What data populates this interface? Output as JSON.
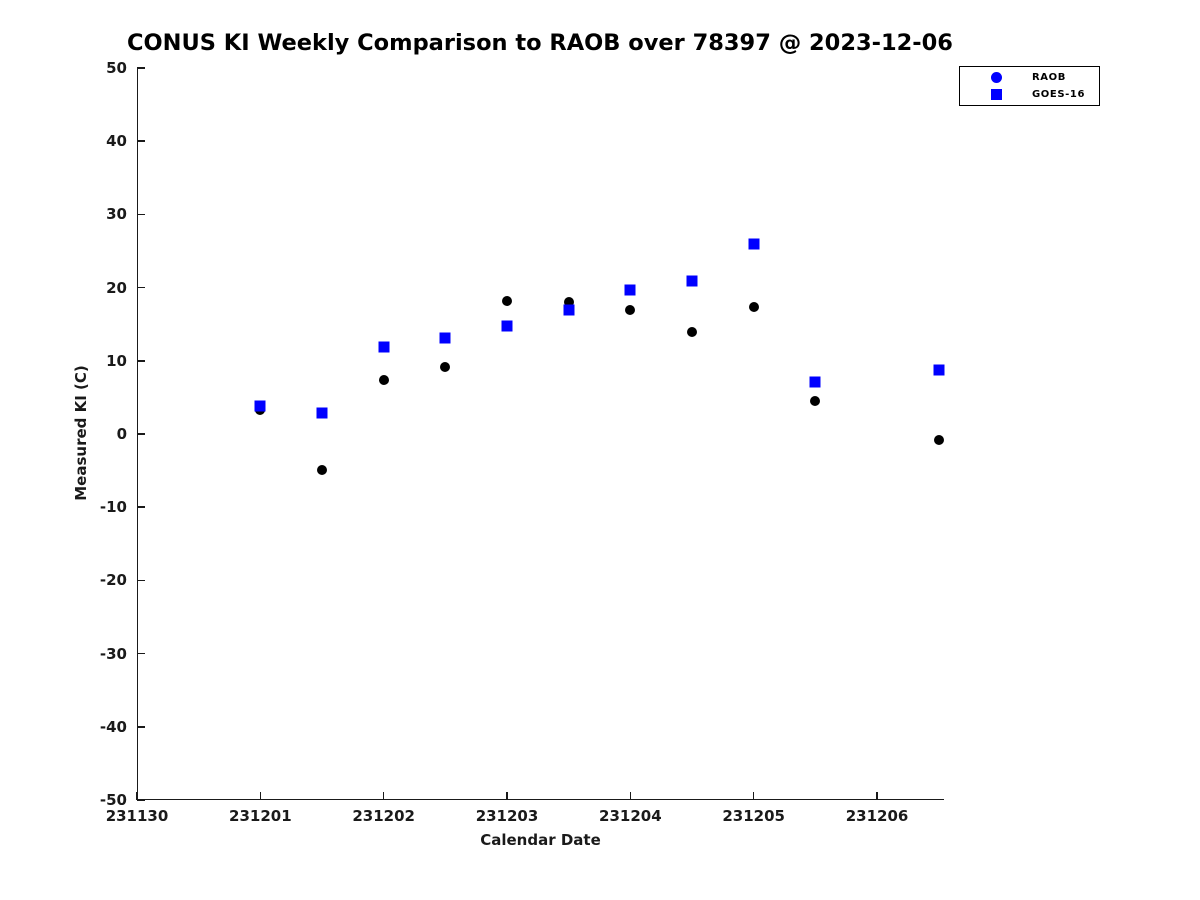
{
  "figure": {
    "title": "CONUS KI Weekly Comparison to RAOB over 78397 @ 2023-12-06"
  },
  "chart_data": {
    "type": "scatter",
    "title": "CONUS KI Weekly Comparison to RAOB over 78397 @ 2023-12-06",
    "xlabel": "Calendar Date",
    "ylabel": "Measured KI (C)",
    "ylim": [
      -50,
      50
    ],
    "xlim_day_offsets": [
      0,
      6.543
    ],
    "grid": false,
    "legend_position": "outside-top-right",
    "y_ticks": [
      50,
      40,
      30,
      20,
      10,
      0,
      -10,
      -20,
      -30,
      -40,
      -50
    ],
    "x_ticks": [
      {
        "label": "231130",
        "day_offset": 0
      },
      {
        "label": "231201",
        "day_offset": 1
      },
      {
        "label": "231202",
        "day_offset": 2
      },
      {
        "label": "231203",
        "day_offset": 3
      },
      {
        "label": "231204",
        "day_offset": 4
      },
      {
        "label": "231205",
        "day_offset": 5
      },
      {
        "label": "231206",
        "day_offset": 6
      }
    ],
    "colors": {
      "marker_blue": "#0000ff",
      "marker_black": "#000000",
      "axis_text": "#1a1a1a"
    },
    "series": [
      {
        "name": "RAOB",
        "marker": "circle",
        "marker_color": "#000000",
        "legend_marker_color": "#0000ff",
        "points": [
          {
            "date": "231201.0",
            "day_offset": 1.0,
            "ki": 3.3
          },
          {
            "date": "231201.5",
            "day_offset": 1.5,
            "ki": -4.9
          },
          {
            "date": "231202.0",
            "day_offset": 2.0,
            "ki": 7.4
          },
          {
            "date": "231202.5",
            "day_offset": 2.5,
            "ki": 9.1
          },
          {
            "date": "231203.0",
            "day_offset": 3.0,
            "ki": 18.2
          },
          {
            "date": "231203.5",
            "day_offset": 3.5,
            "ki": 18.1
          },
          {
            "date": "231204.0",
            "day_offset": 4.0,
            "ki": 17.0
          },
          {
            "date": "231204.5",
            "day_offset": 4.5,
            "ki": 14.0
          },
          {
            "date": "231205.0",
            "day_offset": 5.0,
            "ki": 17.4
          },
          {
            "date": "231205.5",
            "day_offset": 5.5,
            "ki": 4.5
          },
          {
            "date": "231206.5",
            "day_offset": 6.5,
            "ki": -0.8
          }
        ]
      },
      {
        "name": "GOES-16",
        "marker": "square",
        "marker_color": "#0000ff",
        "legend_marker_color": "#0000ff",
        "points": [
          {
            "date": "231201.0",
            "day_offset": 1.0,
            "ki": 3.8
          },
          {
            "date": "231201.5",
            "day_offset": 1.5,
            "ki": 2.9
          },
          {
            "date": "231202.0",
            "day_offset": 2.0,
            "ki": 11.9
          },
          {
            "date": "231202.5",
            "day_offset": 2.5,
            "ki": 13.1
          },
          {
            "date": "231203.0",
            "day_offset": 3.0,
            "ki": 14.8
          },
          {
            "date": "231203.5",
            "day_offset": 3.5,
            "ki": 17.0
          },
          {
            "date": "231204.0",
            "day_offset": 4.0,
            "ki": 19.7
          },
          {
            "date": "231204.5",
            "day_offset": 4.5,
            "ki": 20.9
          },
          {
            "date": "231205.0",
            "day_offset": 5.0,
            "ki": 25.9
          },
          {
            "date": "231205.5",
            "day_offset": 5.5,
            "ki": 7.1
          },
          {
            "date": "231206.5",
            "day_offset": 6.5,
            "ki": 8.7
          }
        ]
      }
    ]
  }
}
